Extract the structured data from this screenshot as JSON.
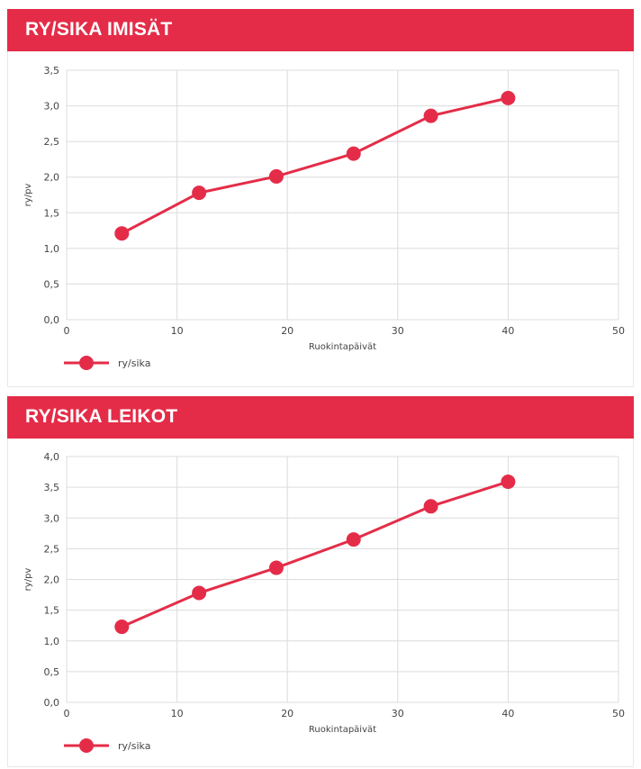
{
  "color": "#e42c48",
  "chart_data": [
    {
      "type": "line",
      "title": "RY/SIKA IMISÄT",
      "xlabel": "Ruokintapäivät",
      "ylabel": "ry/pv",
      "xlim": [
        0,
        50
      ],
      "ylim": [
        0,
        3.5
      ],
      "xticks": [
        "0",
        "10",
        "20",
        "30",
        "40",
        "50"
      ],
      "yticks": [
        "0,0",
        "0,5",
        "1,0",
        "1,5",
        "2,0",
        "2,5",
        "3,0",
        "3,5"
      ],
      "grid": true,
      "legend": "bottom-left",
      "series": [
        {
          "name": "ry/sika",
          "x": [
            5,
            12,
            19,
            26,
            33,
            40
          ],
          "y": [
            1.21,
            1.78,
            2.01,
            2.33,
            2.86,
            3.11
          ]
        }
      ]
    },
    {
      "type": "line",
      "title": "RY/SIKA LEIKOT",
      "xlabel": "Ruokintapäivät",
      "ylabel": "ry/pv",
      "xlim": [
        0,
        50
      ],
      "ylim": [
        0,
        4.0
      ],
      "xticks": [
        "0",
        "10",
        "20",
        "30",
        "40",
        "50"
      ],
      "yticks": [
        "0,0",
        "0,5",
        "1,0",
        "1,5",
        "2,0",
        "2,5",
        "3,0",
        "3,5",
        "4,0"
      ],
      "grid": true,
      "legend": "bottom-left",
      "series": [
        {
          "name": "ry/sika",
          "x": [
            5,
            12,
            19,
            26,
            33,
            40
          ],
          "y": [
            1.23,
            1.78,
            2.19,
            2.65,
            3.19,
            3.59
          ]
        }
      ]
    }
  ]
}
